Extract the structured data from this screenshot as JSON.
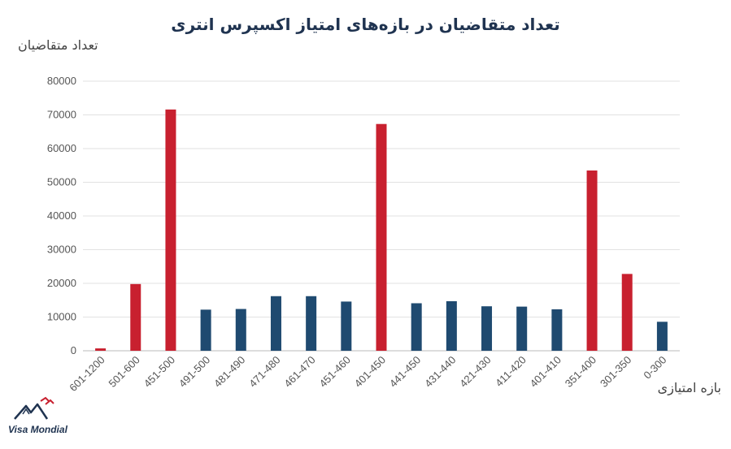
{
  "chart_data": {
    "type": "bar",
    "title": "تعداد متقاضیان در بازه‌های امتیاز اکسپرس انتری",
    "ylabel": "تعداد متقاضیان",
    "xlabel": "بازه امتیازی",
    "ylim": [
      0,
      80000
    ],
    "yticks": [
      "0",
      "10000",
      "20000",
      "30000",
      "40000",
      "50000",
      "60000",
      "70000",
      "80000"
    ],
    "grid": true,
    "categories": [
      "601-1200",
      "501-600",
      "451-500",
      "491-500",
      "481-490",
      "471-480",
      "461-470",
      "451-460",
      "401-450",
      "441-450",
      "431-440",
      "421-430",
      "411-420",
      "401-410",
      "351-400",
      "301-350",
      "0-300"
    ],
    "values": [
      700,
      19800,
      71600,
      12200,
      12400,
      16200,
      16200,
      14600,
      67300,
      14100,
      14700,
      13200,
      13100,
      12300,
      53500,
      22800,
      8600
    ],
    "bar_colors": [
      "#c8202f",
      "#c8202f",
      "#c8202f",
      "#1f4a70",
      "#1f4a70",
      "#1f4a70",
      "#1f4a70",
      "#1f4a70",
      "#c8202f",
      "#1f4a70",
      "#1f4a70",
      "#1f4a70",
      "#1f4a70",
      "#1f4a70",
      "#c8202f",
      "#c8202f",
      "#1f4a70"
    ]
  },
  "colors": {
    "red": "#c8202f",
    "blue": "#1f4a70",
    "title": "#1f3350"
  },
  "logo": {
    "text": "Visa Mondial"
  }
}
